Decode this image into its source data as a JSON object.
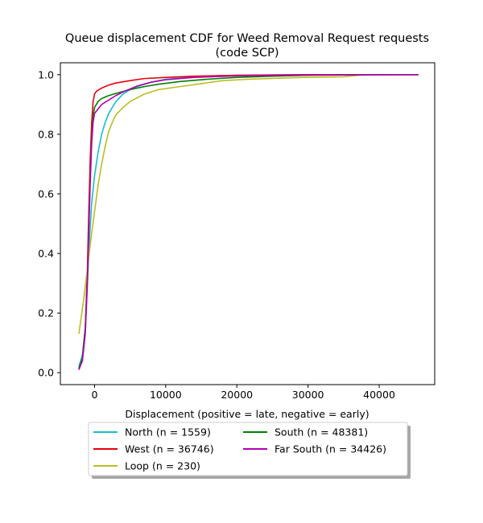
{
  "chart_data": {
    "type": "line",
    "title": "Queue displacement CDF for Weed Removal Request  requests",
    "subtitle": "(code SCP)",
    "xlabel": "Displacement (positive = late, negative = early)",
    "ylabel": "",
    "xlim": [
      -4800,
      47800
    ],
    "ylim": [
      -0.04,
      1.04
    ],
    "xticks": [
      0,
      10000,
      20000,
      30000,
      40000
    ],
    "yticks": [
      0.0,
      0.2,
      0.4,
      0.6,
      0.8,
      1.0
    ],
    "xtick_labels": [
      "0",
      "10000",
      "20000",
      "30000",
      "40000"
    ],
    "ytick_labels": [
      "0.0",
      "0.2",
      "0.4",
      "0.6",
      "0.8",
      "1.0"
    ],
    "grid": false,
    "legend_position": "below-center",
    "series": [
      {
        "name": "North (n = 1559)",
        "color": "#17becf",
        "points": [
          [
            -2200,
            0.02
          ],
          [
            -1700,
            0.06
          ],
          [
            -1300,
            0.15
          ],
          [
            -1000,
            0.3
          ],
          [
            -700,
            0.45
          ],
          [
            -400,
            0.57
          ],
          [
            0,
            0.66
          ],
          [
            500,
            0.74
          ],
          [
            1000,
            0.8
          ],
          [
            1500,
            0.84
          ],
          [
            2000,
            0.87
          ],
          [
            3000,
            0.91
          ],
          [
            4000,
            0.935
          ],
          [
            5000,
            0.95
          ],
          [
            6000,
            0.96
          ],
          [
            8000,
            0.975
          ],
          [
            10000,
            0.985
          ],
          [
            14000,
            0.993
          ],
          [
            20000,
            0.998
          ],
          [
            30000,
            1.0
          ],
          [
            45500,
            1.0
          ]
        ]
      },
      {
        "name": "West (n = 36746)",
        "color": "#e8000b",
        "points": [
          [
            -2200,
            0.01
          ],
          [
            -1700,
            0.05
          ],
          [
            -1300,
            0.15
          ],
          [
            -1000,
            0.35
          ],
          [
            -800,
            0.55
          ],
          [
            -600,
            0.72
          ],
          [
            -400,
            0.84
          ],
          [
            -200,
            0.91
          ],
          [
            0,
            0.935
          ],
          [
            300,
            0.945
          ],
          [
            1000,
            0.955
          ],
          [
            2000,
            0.965
          ],
          [
            3000,
            0.972
          ],
          [
            5000,
            0.98
          ],
          [
            7000,
            0.987
          ],
          [
            10000,
            0.991
          ],
          [
            14000,
            0.995
          ],
          [
            20000,
            0.998
          ],
          [
            30000,
            1.0
          ],
          [
            45500,
            1.0
          ]
        ]
      },
      {
        "name": "Loop (n = 230)",
        "color": "#bcbd22",
        "points": [
          [
            -2200,
            0.13
          ],
          [
            -1500,
            0.25
          ],
          [
            -1000,
            0.35
          ],
          [
            -500,
            0.45
          ],
          [
            0,
            0.54
          ],
          [
            500,
            0.63
          ],
          [
            1000,
            0.7
          ],
          [
            1500,
            0.76
          ],
          [
            2000,
            0.81
          ],
          [
            2500,
            0.84
          ],
          [
            3000,
            0.865
          ],
          [
            4000,
            0.89
          ],
          [
            5000,
            0.91
          ],
          [
            7000,
            0.935
          ],
          [
            9000,
            0.95
          ],
          [
            12000,
            0.96
          ],
          [
            15000,
            0.97
          ],
          [
            18000,
            0.98
          ],
          [
            22000,
            0.985
          ],
          [
            28000,
            0.99
          ],
          [
            35000,
            0.993
          ],
          [
            38000,
            1.0
          ],
          [
            45500,
            1.0
          ]
        ]
      },
      {
        "name": "South (n = 48381)",
        "color": "#008000",
        "points": [
          [
            -2200,
            0.015
          ],
          [
            -1700,
            0.05
          ],
          [
            -1300,
            0.15
          ],
          [
            -1000,
            0.32
          ],
          [
            -800,
            0.5
          ],
          [
            -600,
            0.66
          ],
          [
            -400,
            0.79
          ],
          [
            -200,
            0.86
          ],
          [
            0,
            0.89
          ],
          [
            500,
            0.91
          ],
          [
            1000,
            0.92
          ],
          [
            2000,
            0.93
          ],
          [
            3000,
            0.937
          ],
          [
            5000,
            0.95
          ],
          [
            7000,
            0.96
          ],
          [
            9000,
            0.968
          ],
          [
            12000,
            0.977
          ],
          [
            16000,
            0.985
          ],
          [
            20000,
            0.991
          ],
          [
            25000,
            0.995
          ],
          [
            30000,
            0.998
          ],
          [
            40000,
            1.0
          ],
          [
            45500,
            1.0
          ]
        ]
      },
      {
        "name": "Far South (n = 34426)",
        "color": "#b300b3",
        "points": [
          [
            -2200,
            0.01
          ],
          [
            -1700,
            0.04
          ],
          [
            -1300,
            0.13
          ],
          [
            -1000,
            0.3
          ],
          [
            -800,
            0.48
          ],
          [
            -600,
            0.64
          ],
          [
            -400,
            0.77
          ],
          [
            -200,
            0.84
          ],
          [
            0,
            0.87
          ],
          [
            500,
            0.885
          ],
          [
            1000,
            0.9
          ],
          [
            2000,
            0.915
          ],
          [
            3000,
            0.93
          ],
          [
            4000,
            0.942
          ],
          [
            6000,
            0.962
          ],
          [
            8000,
            0.975
          ],
          [
            10000,
            0.983
          ],
          [
            14000,
            0.991
          ],
          [
            20000,
            0.996
          ],
          [
            30000,
            0.999
          ],
          [
            45500,
            1.0
          ]
        ]
      }
    ]
  }
}
